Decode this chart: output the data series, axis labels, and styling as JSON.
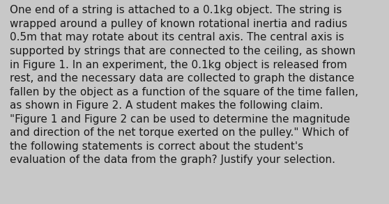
{
  "background_color": "#c8c8c8",
  "text_color": "#1a1a1a",
  "font_size": 11.0,
  "font_family": "DejaVu Sans",
  "lines": [
    "One end of a string is attached to a 0.1kg object. The string is",
    "wrapped around a pulley of known rotational inertia and radius",
    "0.5m that may rotate about its central axis. The central axis is",
    "supported by strings that are connected to the ceiling, as shown",
    "in Figure 1. In an experiment, the 0.1kg object is released from",
    "rest, and the necessary data are collected to graph the distance",
    "fallen by the object as a function of the square of the time fallen,",
    "as shown in Figure 2. A student makes the following claim.",
    "\"Figure 1 and Figure 2 can be used to determine the magnitude",
    "and direction of the net torque exerted on the pulley.\" Which of",
    "the following statements is correct about the student's",
    "evaluation of the data from the graph? Justify your selection."
  ],
  "figwidth": 5.58,
  "figheight": 2.93,
  "dpi": 100
}
